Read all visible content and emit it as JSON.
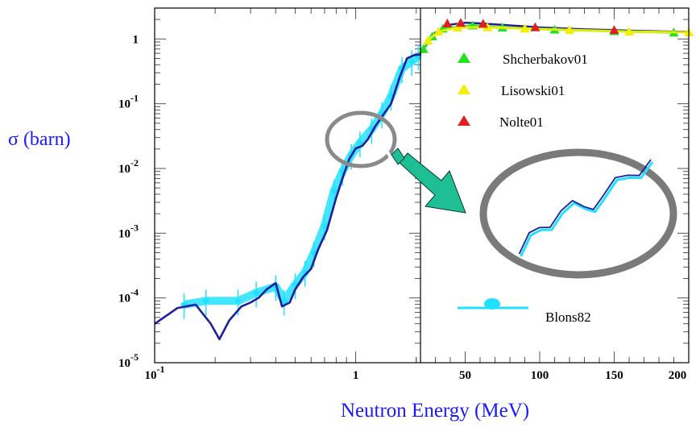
{
  "chart_data": {
    "type": "line",
    "title": "",
    "ylabel": "σ (barn)",
    "xlabel": "Neutron Energy (MeV)",
    "y_scale": "log",
    "ylim": [
      1e-05,
      3
    ],
    "y_ticks": [
      {
        "value": 1,
        "base": "1",
        "exp": ""
      },
      {
        "value": 0.1,
        "base": "10",
        "exp": "-1"
      },
      {
        "value": 0.01,
        "base": "10",
        "exp": "-2"
      },
      {
        "value": 0.001,
        "base": "10",
        "exp": "-3"
      },
      {
        "value": 0.0001,
        "base": "10",
        "exp": "-4"
      },
      {
        "value": 1e-05,
        "base": "10",
        "exp": "-5"
      }
    ],
    "panels": [
      {
        "name": "low-energy",
        "x_scale": "log",
        "xlim": [
          0.1,
          2.1
        ],
        "x_ticks": [
          {
            "value": 0.1,
            "base": "10",
            "exp": "-1"
          },
          {
            "value": 1,
            "base": "1",
            "exp": ""
          }
        ]
      },
      {
        "name": "high-energy",
        "x_scale": "linear",
        "xlim": [
          20,
          200
        ],
        "x_ticks": [
          {
            "value": 50,
            "base": "50",
            "exp": ""
          },
          {
            "value": 100,
            "base": "100",
            "exp": ""
          },
          {
            "value": 150,
            "base": "150",
            "exp": ""
          },
          {
            "value": 200,
            "base": "200",
            "exp": ""
          }
        ]
      }
    ],
    "series": [
      {
        "name": "",
        "color": "#1f1f9e",
        "style": "evaluation-line",
        "low": [
          [
            0.1,
            3.98e-05
          ],
          [
            0.13,
            7e-05
          ],
          [
            0.16,
            7.9e-05
          ],
          [
            0.19,
            4e-05
          ],
          [
            0.21,
            2.3e-05
          ],
          [
            0.235,
            4.5e-05
          ],
          [
            0.27,
            7.4e-05
          ],
          [
            0.3,
            8.5e-05
          ],
          [
            0.33,
            0.000101
          ],
          [
            0.36,
            0.000135
          ],
          [
            0.4,
            0.00017
          ],
          [
            0.43,
            7.4e-05
          ],
          [
            0.47,
            8.5e-05
          ],
          [
            0.5,
            0.000135
          ],
          [
            0.55,
            0.000214
          ],
          [
            0.6,
            0.000282
          ],
          [
            0.65,
            0.000562
          ],
          [
            0.72,
            0.00112
          ],
          [
            0.8,
            0.00355
          ],
          [
            0.87,
            0.0079
          ],
          [
            0.93,
            0.0141
          ],
          [
            1.0,
            0.0204
          ],
          [
            1.08,
            0.0224
          ],
          [
            1.15,
            0.0282
          ],
          [
            1.25,
            0.0447
          ],
          [
            1.35,
            0.0631
          ],
          [
            1.5,
            0.1
          ],
          [
            1.65,
            0.251
          ],
          [
            1.8,
            0.501
          ],
          [
            1.95,
            0.562
          ],
          [
            2.1,
            0.575
          ]
        ],
        "high": [
          [
            20,
            0.6
          ],
          [
            30,
            1.26
          ],
          [
            40,
            1.66
          ],
          [
            50,
            1.78
          ],
          [
            60,
            1.74
          ],
          [
            80,
            1.62
          ],
          [
            100,
            1.51
          ],
          [
            130,
            1.41
          ],
          [
            160,
            1.35
          ],
          [
            190,
            1.3
          ],
          [
            200,
            1.29
          ]
        ]
      },
      {
        "name": "Blons82",
        "color": "#22e0ff",
        "style": "data-band",
        "low": [
          [
            0.14,
            7.9e-05
          ],
          [
            0.18,
            9e-05
          ],
          [
            0.26,
            9e-05
          ],
          [
            0.32,
            0.00012
          ],
          [
            0.4,
            0.00015
          ],
          [
            0.44,
            9e-05
          ],
          [
            0.5,
            0.00016
          ],
          [
            0.56,
            0.00025
          ],
          [
            0.62,
            0.0005
          ],
          [
            0.7,
            0.0013
          ],
          [
            0.78,
            0.0045
          ],
          [
            0.86,
            0.009
          ],
          [
            0.95,
            0.016
          ],
          [
            1.05,
            0.025
          ],
          [
            1.2,
            0.04
          ],
          [
            1.35,
            0.07
          ],
          [
            1.5,
            0.13
          ],
          [
            1.7,
            0.35
          ],
          [
            1.9,
            0.45
          ],
          [
            2.05,
            0.55
          ]
        ],
        "high": []
      },
      {
        "name": "Shcherbakov01",
        "color": "#22e022",
        "style": "markers",
        "low": [],
        "high": [
          [
            22,
            0.7
          ],
          [
            28,
            1.1
          ],
          [
            35,
            1.45
          ],
          [
            55,
            1.62
          ],
          [
            75,
            1.5
          ],
          [
            110,
            1.4
          ],
          [
            150,
            1.32
          ],
          [
            190,
            1.26
          ]
        ]
      },
      {
        "name": "Lisowski01",
        "color": "#f0f000",
        "style": "markers",
        "low": [],
        "high": [
          [
            25,
            0.95
          ],
          [
            32,
            1.3
          ],
          [
            45,
            1.5
          ],
          [
            65,
            1.52
          ],
          [
            90,
            1.45
          ],
          [
            120,
            1.38
          ],
          [
            160,
            1.3
          ],
          [
            200,
            1.27
          ]
        ]
      },
      {
        "name": "Nolte01",
        "color": "#e02020",
        "style": "markers",
        "low": [],
        "high": [
          [
            38,
            1.74
          ],
          [
            47,
            1.78
          ],
          [
            62,
            1.72
          ],
          [
            97,
            1.52
          ],
          [
            150,
            1.38
          ]
        ]
      }
    ],
    "legend": {
      "placement": "right-panel",
      "items": [
        "Shcherbakov01",
        "Lisowski01",
        "Nolte01",
        "Blons82"
      ]
    },
    "inset": {
      "kind": "zoom-ellipse",
      "series": "evaluation-line",
      "zoomed_range_mev": [
        0.85,
        1.35
      ]
    }
  }
}
